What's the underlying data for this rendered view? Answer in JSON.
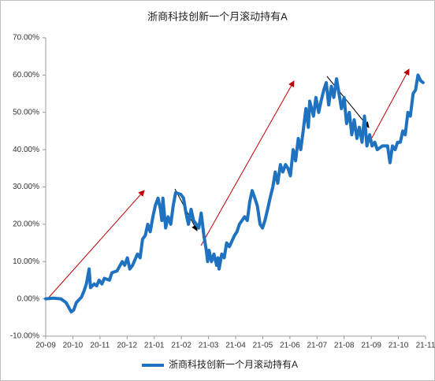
{
  "chart_data": {
    "type": "line",
    "title": "浙商科技创新一个月滚动持有A",
    "x": [
      0,
      0.28,
      0.56,
      0.75,
      0.94,
      1.03,
      1.13,
      1.32,
      1.41,
      1.5,
      1.6,
      1.65,
      1.79,
      1.88,
      1.97,
      2.07,
      2.16,
      2.35,
      2.44,
      2.63,
      2.82,
      2.91,
      3.01,
      3.1,
      3.2,
      3.38,
      3.48,
      3.57,
      3.67,
      3.76,
      3.85,
      3.95,
      4.04,
      4.14,
      4.23,
      4.28,
      4.32,
      4.42,
      4.51,
      4.61,
      4.7,
      4.79,
      4.98,
      5.08,
      5.17,
      5.26,
      5.36,
      5.45,
      5.55,
      5.64,
      5.73,
      5.83,
      5.92,
      5.97,
      6.02,
      6.11,
      6.2,
      6.3,
      6.35,
      6.39,
      6.49,
      6.58,
      6.67,
      6.77,
      6.96,
      7.05,
      7.14,
      7.33,
      7.43,
      7.52,
      7.61,
      7.71,
      7.8,
      7.9,
      7.99,
      8.08,
      8.18,
      8.27,
      8.37,
      8.46,
      8.55,
      8.65,
      8.74,
      8.84,
      8.93,
      9.02,
      9.12,
      9.21,
      9.31,
      9.4,
      9.49,
      9.59,
      9.68,
      9.73,
      9.87,
      9.96,
      10.06,
      10.15,
      10.25,
      10.34,
      10.43,
      10.53,
      10.62,
      10.72,
      10.81,
      10.9,
      11.0,
      11.09,
      11.19,
      11.28,
      11.37,
      11.47,
      11.56,
      11.66,
      11.75,
      11.84,
      11.94,
      12.03,
      12.13,
      12.22,
      12.41,
      12.6,
      12.69,
      12.78,
      12.88,
      12.97,
      13.07,
      13.16,
      13.25,
      13.35,
      13.44,
      13.54,
      13.63,
      13.72,
      13.82,
      13.91
    ],
    "series": [
      {
        "name": "浙商科技创新一个月滚动持有A",
        "color": "#1f72c0",
        "values": [
          0,
          0.2,
          0,
          -1,
          -3.5,
          -3,
          -1,
          0.5,
          2,
          4,
          8,
          3,
          4,
          3.5,
          5,
          4,
          5.5,
          5,
          7,
          7.5,
          10,
          9,
          11,
          8,
          9,
          12,
          11,
          16,
          17,
          20,
          18,
          22,
          25,
          27,
          24,
          21,
          27,
          19,
          22,
          20,
          25,
          28.5,
          28,
          27,
          23,
          20,
          24,
          21,
          20,
          19,
          23,
          17,
          13,
          10,
          13,
          10,
          12,
          9,
          11,
          8,
          12,
          11,
          15,
          14,
          17,
          18,
          20,
          22,
          21,
          26,
          29,
          27,
          25,
          20,
          19,
          21,
          24,
          27,
          30,
          34,
          31,
          36,
          34,
          36,
          35,
          33,
          40,
          37,
          43,
          40,
          45,
          51,
          46,
          53,
          49,
          54,
          50,
          53,
          56,
          58,
          52,
          57,
          54,
          59,
          55,
          51,
          54,
          47,
          50,
          44,
          48,
          43,
          46,
          42,
          49,
          41,
          44,
          41,
          42,
          40,
          41,
          41,
          36.5,
          41,
          40,
          42,
          42,
          45,
          44,
          50,
          49,
          55,
          56,
          60,
          58.5,
          58
        ]
      }
    ],
    "xlim": [
      0,
      14
    ],
    "xticks": [
      {
        "value": 0,
        "label": "20-09"
      },
      {
        "value": 1,
        "label": "20-10"
      },
      {
        "value": 2,
        "label": "20-11"
      },
      {
        "value": 3,
        "label": "20-12"
      },
      {
        "value": 4,
        "label": "21-01"
      },
      {
        "value": 5,
        "label": "21-02"
      },
      {
        "value": 6,
        "label": "21-03"
      },
      {
        "value": 7,
        "label": "21-04"
      },
      {
        "value": 8,
        "label": "21-05"
      },
      {
        "value": 9,
        "label": "21-06"
      },
      {
        "value": 10,
        "label": "21-07"
      },
      {
        "value": 11,
        "label": "21-08"
      },
      {
        "value": 12,
        "label": "21-09"
      },
      {
        "value": 13,
        "label": "21-10"
      },
      {
        "value": 14,
        "label": "21-11"
      }
    ],
    "ylim": [
      -10,
      70
    ],
    "yticks": [
      {
        "value": -10,
        "label": "-10.00%"
      },
      {
        "value": 0,
        "label": "0.00%"
      },
      {
        "value": 10,
        "label": "10.00%"
      },
      {
        "value": 20,
        "label": "20.00%"
      },
      {
        "value": 30,
        "label": "30.00%"
      },
      {
        "value": 40,
        "label": "40.00%"
      },
      {
        "value": 50,
        "label": "50.00%"
      },
      {
        "value": 60,
        "label": "60.00%"
      },
      {
        "value": 70,
        "label": "70.00%"
      }
    ],
    "grid": false,
    "legend": "bottom"
  }
}
